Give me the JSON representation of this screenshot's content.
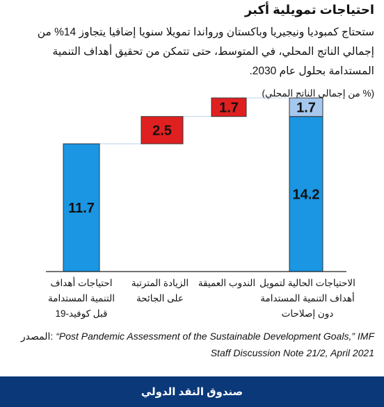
{
  "header": {
    "title": "احتياجات تمويلية أكبر",
    "subtitle": "ستحتاج كمبوديا ونيجيريا وباكستان ورواندا تمويلا سنويا إضافيا يتجاوز 14% من إجمالي الناتج المحلي، في المتوسط، حتى تتمكن من تحقيق أهداف التنمية المستدامة بحلول عام 2030.",
    "unit": "(% من إجمالي الناتج المحلي)"
  },
  "chart_data": {
    "type": "bar",
    "subtype": "waterfall",
    "ylabel": "(% من إجمالي الناتج المحلي)",
    "grid": false,
    "legend": "none",
    "categories": [
      "احتياجات أهداف\nالتنمية المستدامة\nقبل كوفيد-19",
      "الزيادة المترتبة\nعلى الجائحة",
      "الندوب العميقة",
      "الاحتياجات الحالية لتمويل\nأهداف التنمية المستدامة\nدون إصلاحات"
    ],
    "bars": [
      {
        "category": 0,
        "base": 0,
        "value": 11.7,
        "label": "11.7",
        "color": "#1a96e2"
      },
      {
        "category": 1,
        "base": 11.7,
        "value": 2.5,
        "label": "2.5",
        "color": "#e02020"
      },
      {
        "category": 2,
        "base": 14.2,
        "value": 1.7,
        "label": "1.7",
        "color": "#e02020"
      },
      {
        "category": 3,
        "base": 0,
        "value": 14.2,
        "label": "14.2",
        "color": "#1a96e2"
      },
      {
        "category": 3,
        "base": 14.2,
        "value": 1.7,
        "label": "1.7",
        "color": "#a7c8ee"
      }
    ],
    "ylim": [
      0,
      15.9
    ]
  },
  "source": {
    "label": "المصدر:",
    "text": "“Post Pandemic Assessment of the Sustainable Development Goals,” IMF",
    "text2": "Staff Discussion Note 21/2, April 2021"
  },
  "footer": {
    "org": "صندوق النقد الدولي"
  },
  "colors": {
    "blue": "#1a96e2",
    "red": "#e02020",
    "light_blue": "#a7c8ee",
    "footer": "#0a3879"
  }
}
